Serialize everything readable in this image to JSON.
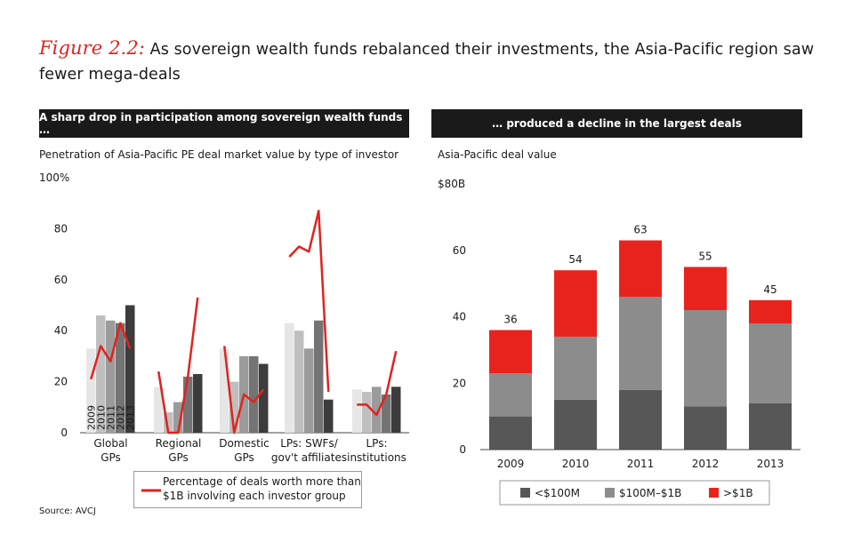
{
  "title": {
    "figure_label": "Figure 2.2:",
    "text": "As sovereign wealth funds rebalanced their investments, the Asia-Pacific region saw fewer mega-deals"
  },
  "left_panel": {
    "header": "A sharp drop in participation among sovereign wealth funds …",
    "subtitle": "Penetration of Asia-Pacific PE deal market value by type of investor"
  },
  "right_panel": {
    "header": "… produced a decline in the largest deals",
    "subtitle": "Asia-Pacific deal value"
  },
  "left_legend": {
    "line_label_1": "Percentage of deals worth more than",
    "line_label_2": "$1B involving each investor group"
  },
  "source": "Source: AVCJ",
  "colors": {
    "accent_red": "#e0231f",
    "year_2009": "#e6e6e6",
    "year_2010": "#bfbfbf",
    "year_2011": "#9b9b9b",
    "year_2012": "#747474",
    "year_2013": "#3c3c3c",
    "stack_lt100m": "#575757",
    "stack_100m_1b": "#8c8c8c",
    "stack_gt1b": "#e8231e"
  },
  "chart_data": [
    {
      "type": "bar",
      "subtype": "grouped-bar-with-line",
      "title": "A sharp drop in participation among sovereign wealth funds …",
      "ylabel": "Penetration of Asia-Pacific PE deal market value by type of investor",
      "ylim": [
        0,
        100
      ],
      "yticks": [
        "0",
        "20",
        "40",
        "60",
        "80",
        "100%"
      ],
      "categories": [
        "Global GPs",
        "Regional GPs",
        "Domestic GPs",
        "LPs: SWFs/ gov't affiliates",
        "LPs: institutions"
      ],
      "category_lines": [
        [
          "Global",
          "GPs"
        ],
        [
          "Regional",
          "GPs"
        ],
        [
          "Domestic",
          "GPs"
        ],
        [
          "LPs: SWFs/",
          "gov't affiliates"
        ],
        [
          "LPs:",
          "institutions"
        ]
      ],
      "series": [
        {
          "name": "2009",
          "values": [
            33,
            18,
            33,
            43,
            17
          ]
        },
        {
          "name": "2010",
          "values": [
            46,
            8,
            20,
            40,
            16
          ]
        },
        {
          "name": "2011",
          "values": [
            44,
            12,
            30,
            33,
            18
          ]
        },
        {
          "name": "2012",
          "values": [
            43,
            22,
            30,
            44,
            15
          ]
        },
        {
          "name": "2013",
          "values": [
            50,
            23,
            27,
            13,
            18
          ]
        }
      ],
      "line_series": {
        "name": "Percentage of deals worth more than $1B involving each investor group",
        "values": [
          [
            21,
            34,
            28,
            43,
            33
          ],
          [
            24,
            0,
            0,
            22,
            53
          ],
          [
            34,
            0,
            15,
            12,
            17
          ],
          [
            69,
            73,
            71,
            87,
            16
          ],
          [
            11,
            11,
            7,
            15,
            32
          ]
        ]
      },
      "bar_labels": [
        "2009",
        "2010",
        "2011",
        "2012",
        "2013"
      ]
    },
    {
      "type": "bar",
      "subtype": "stacked",
      "title": "… produced a decline in the largest deals",
      "ylabel": "Asia-Pacific deal value",
      "ylim": [
        0,
        80
      ],
      "yticks": [
        "0",
        "20",
        "40",
        "60",
        "$80B"
      ],
      "categories": [
        "2009",
        "2010",
        "2011",
        "2012",
        "2013"
      ],
      "series": [
        {
          "name": "<$100M",
          "values": [
            10,
            15,
            18,
            13,
            14
          ]
        },
        {
          "name": "$100M–$1B",
          "values": [
            13,
            19,
            28,
            29,
            24
          ]
        },
        {
          "name": ">$1B",
          "values": [
            13,
            20,
            17,
            13,
            7
          ]
        }
      ],
      "totals": [
        "36",
        "54",
        "63",
        "55",
        "45"
      ],
      "legend": [
        "<$100M",
        "$100M–$1B",
        ">$1B"
      ]
    }
  ]
}
